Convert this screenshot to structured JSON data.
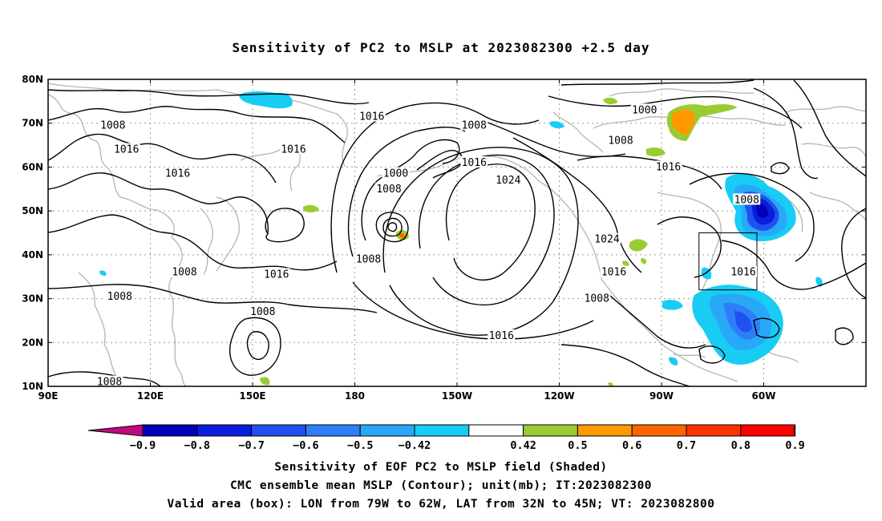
{
  "title": "Sensitivity of PC2 to MSLP at 2023082300 +2.5 day",
  "lat_labels": [
    "80N",
    "70N",
    "60N",
    "50N",
    "40N",
    "30N",
    "20N",
    "10N"
  ],
  "lon_labels": [
    "90E",
    "120E",
    "150E",
    "180",
    "150W",
    "120W",
    "90W",
    "60W"
  ],
  "contour_labels": [
    {
      "text": "1016",
      "lon": -175,
      "lat": 71.5
    },
    {
      "text": "1008",
      "lon": 109,
      "lat": 69.5
    },
    {
      "text": "1016",
      "lon": 113,
      "lat": 64
    },
    {
      "text": "1016",
      "lon": 162,
      "lat": 64
    },
    {
      "text": "1016",
      "lon": 128,
      "lat": 58.5
    },
    {
      "text": "1000",
      "lon": -168,
      "lat": 58.5
    },
    {
      "text": "1008",
      "lon": -170,
      "lat": 55
    },
    {
      "text": "1008",
      "lon": -145,
      "lat": 69.5
    },
    {
      "text": "1016",
      "lon": -145,
      "lat": 61
    },
    {
      "text": "1024",
      "lon": -135,
      "lat": 57
    },
    {
      "text": "1000",
      "lon": -95,
      "lat": 73
    },
    {
      "text": "1008",
      "lon": -102,
      "lat": 66
    },
    {
      "text": "1016",
      "lon": -88,
      "lat": 60
    },
    {
      "text": "1008",
      "lon": -65,
      "lat": 52.5
    },
    {
      "text": "1024",
      "lon": -106,
      "lat": 43.5
    },
    {
      "text": "1008",
      "lon": -176,
      "lat": 39
    },
    {
      "text": "1016",
      "lon": -104,
      "lat": 36
    },
    {
      "text": "1016",
      "lon": -66,
      "lat": 36
    },
    {
      "text": "1008",
      "lon": 130,
      "lat": 36
    },
    {
      "text": "1016",
      "lon": 157,
      "lat": 35.5
    },
    {
      "text": "1008",
      "lon": 111,
      "lat": 30.5
    },
    {
      "text": "1008",
      "lon": 153,
      "lat": 27
    },
    {
      "text": "1008",
      "lon": -109,
      "lat": 30
    },
    {
      "text": "1016",
      "lon": -137,
      "lat": 21.5
    },
    {
      "text": "1008",
      "lon": 108,
      "lat": 11
    }
  ],
  "colorbar": {
    "labels": [
      "-0.9",
      "-0.8",
      "-0.7",
      "-0.6",
      "-0.5",
      "-0.42",
      "0.42",
      "0.5",
      "0.6",
      "0.7",
      "0.8",
      "0.9"
    ],
    "colors": [
      "#c0087f",
      "#0000b4",
      "#0a1edc",
      "#2050ee",
      "#2f7ef8",
      "#29a8f8",
      "#18ccf4",
      "#ffffff",
      "#99cc33",
      "#ff9900",
      "#ff6600",
      "#ff3300",
      "#ff0000",
      "#ff99cc"
    ]
  },
  "valid_box": {
    "lon_min": -79,
    "lon_max": -62,
    "lat_min": 32,
    "lat_max": 45
  },
  "caption_line1": "Sensitivity of EOF PC2 to MSLP field (Shaded)",
  "caption_line2": "CMC ensemble mean MSLP (Contour); unit(mb); IT:2023082300",
  "caption_line3": "Valid area (box): LON from 79W to 62W, LAT from 32N to 45N; VT: 2023082800"
}
